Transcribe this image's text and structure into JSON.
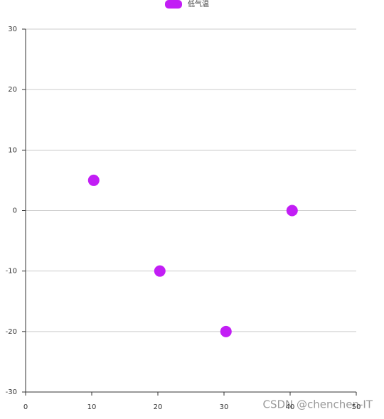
{
  "chart_data": {
    "type": "scatter",
    "series": [
      {
        "name": "低气温",
        "color": "#c21ef5",
        "x": [
          10.3,
          20.3,
          30.3,
          40.3
        ],
        "values": [
          5,
          -10,
          -20,
          0
        ]
      }
    ],
    "xlim": [
      0,
      50
    ],
    "xticks": [
      0,
      10,
      20,
      30,
      40,
      50
    ],
    "ylim": [
      -30,
      30
    ],
    "yticks": [
      -30,
      -20,
      -10,
      0,
      10,
      20,
      30
    ],
    "grid": true,
    "legend": "top"
  },
  "watermark": "CSDN @chenchen-IT"
}
